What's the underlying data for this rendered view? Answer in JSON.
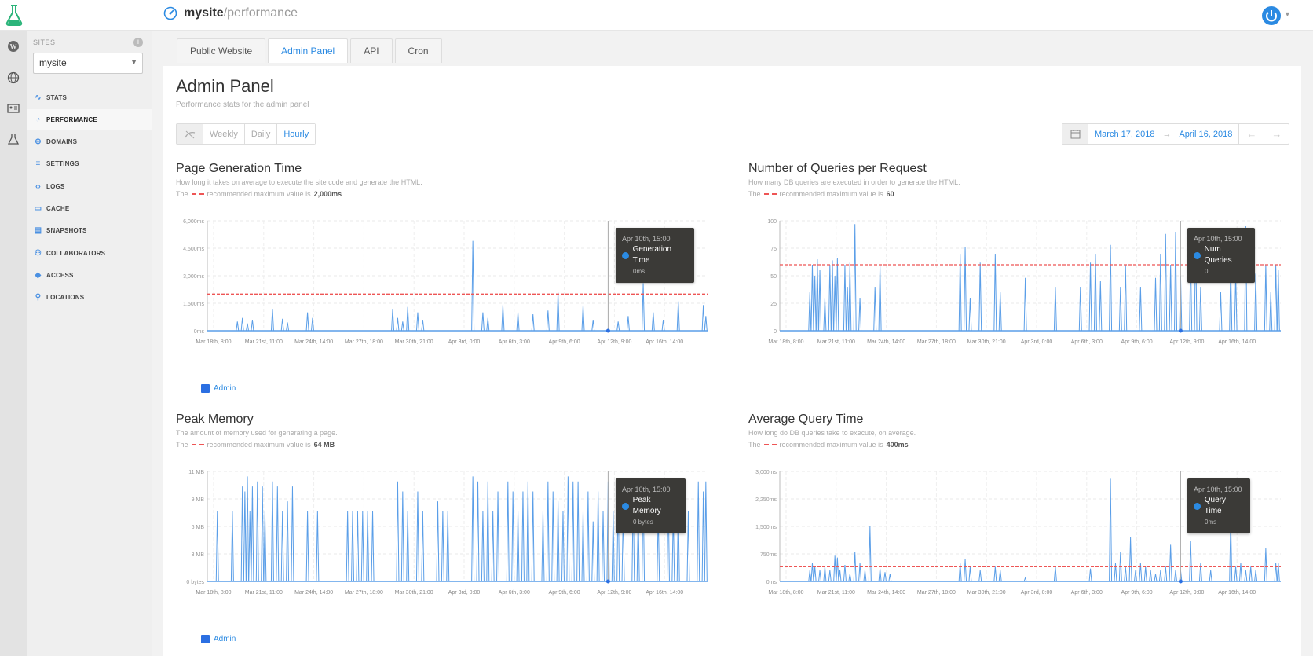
{
  "header": {
    "site_name": "mysite",
    "path": "/performance"
  },
  "sidebar": {
    "sites_label": "SITES",
    "selected_site": "mysite",
    "items": [
      {
        "label": "STATS",
        "icon": "stats-icon"
      },
      {
        "label": "PERFORMANCE",
        "icon": "gauge-icon"
      },
      {
        "label": "DOMAINS",
        "icon": "globe-icon"
      },
      {
        "label": "SETTINGS",
        "icon": "sliders-icon"
      },
      {
        "label": "LOGS",
        "icon": "code-icon"
      },
      {
        "label": "CACHE",
        "icon": "drive-icon"
      },
      {
        "label": "SNAPSHOTS",
        "icon": "snapshot-icon"
      },
      {
        "label": "COLLABORATORS",
        "icon": "users-icon"
      },
      {
        "label": "ACCESS",
        "icon": "diamond-icon"
      },
      {
        "label": "LOCATIONS",
        "icon": "pin-icon"
      }
    ]
  },
  "tabs": [
    "Public Website",
    "Admin Panel",
    "API",
    "Cron"
  ],
  "page": {
    "title": "Admin Panel",
    "subtitle": "Performance stats for the admin panel"
  },
  "range": {
    "weekly": "Weekly",
    "daily": "Daily",
    "hourly": "Hourly"
  },
  "dates": {
    "start": "March 17, 2018",
    "arrow": "→",
    "end": "April 16, 2018"
  },
  "x_ticks": [
    "Mar 18th, 8:00",
    "Mar 21st, 11:00",
    "Mar 24th, 14:00",
    "Mar 27th, 18:00",
    "Mar 30th, 21:00",
    "Apr 3rd, 0:00",
    "Apr 6th, 3:00",
    "Apr 9th, 6:00",
    "Apr 12th, 9:00",
    "Apr 16th, 14:00"
  ],
  "legend_label": "Admin",
  "charts": {
    "gen": {
      "title": "Page Generation Time",
      "desc": "How long it takes on average to execute the site code and generate the HTML.",
      "rec_prefix": "The",
      "rec_text": "recommended maximum value is",
      "rec_value": "2,000ms",
      "tooltip": {
        "date": "Apr 10th, 15:00",
        "series": "Generation Time",
        "value": "0ms"
      }
    },
    "queries": {
      "title": "Number of Queries per Request",
      "desc": "How many DB queries are executed in order to generate the HTML.",
      "rec_prefix": "The",
      "rec_text": "recommended maximum value is",
      "rec_value": "60",
      "tooltip": {
        "date": "Apr 10th, 15:00",
        "series": "Num Queries",
        "value": "0"
      }
    },
    "memory": {
      "title": "Peak Memory",
      "desc": "The amount of memory used for generating a page.",
      "rec_prefix": "The",
      "rec_text": "recommended maximum value is",
      "rec_value": "64 MB",
      "tooltip": {
        "date": "Apr 10th, 15:00",
        "series": "Peak Memory",
        "value": "0 bytes"
      }
    },
    "qtime": {
      "title": "Average Query Time",
      "desc": "How long do DB queries take to execute, on average.",
      "rec_prefix": "The",
      "rec_text": "recommended maximum value is",
      "rec_value": "400ms",
      "tooltip": {
        "date": "Apr 10th, 15:00",
        "series": "Query Time",
        "value": "0ms"
      }
    }
  },
  "chart_data": [
    {
      "type": "line",
      "title": "Page Generation Time",
      "y_ticks": [
        "6,000ms",
        "4,500ms",
        "3,000ms",
        "1,500ms",
        "0ms"
      ],
      "ylim": [
        0,
        6000
      ],
      "threshold": 2000,
      "color": "#5a9ee8",
      "spikes": [
        [
          0.06,
          500
        ],
        [
          0.07,
          700
        ],
        [
          0.08,
          400
        ],
        [
          0.09,
          600
        ],
        [
          0.13,
          1200
        ],
        [
          0.15,
          650
        ],
        [
          0.16,
          450
        ],
        [
          0.2,
          1000
        ],
        [
          0.21,
          700
        ],
        [
          0.37,
          1200
        ],
        [
          0.38,
          700
        ],
        [
          0.39,
          500
        ],
        [
          0.4,
          1300
        ],
        [
          0.42,
          1000
        ],
        [
          0.43,
          600
        ],
        [
          0.53,
          4900
        ],
        [
          0.55,
          1000
        ],
        [
          0.56,
          700
        ],
        [
          0.59,
          1400
        ],
        [
          0.62,
          1000
        ],
        [
          0.65,
          900
        ],
        [
          0.68,
          1100
        ],
        [
          0.7,
          2100
        ],
        [
          0.75,
          1400
        ],
        [
          0.77,
          600
        ],
        [
          0.82,
          500
        ],
        [
          0.84,
          800
        ],
        [
          0.87,
          2600
        ],
        [
          0.89,
          1000
        ],
        [
          0.91,
          600
        ],
        [
          0.94,
          1600
        ],
        [
          0.99,
          1400
        ],
        [
          0.995,
          800
        ]
      ]
    },
    {
      "type": "line",
      "title": "Number of Queries per Request",
      "y_ticks": [
        "100",
        "75",
        "50",
        "25",
        "0"
      ],
      "ylim": [
        0,
        100
      ],
      "threshold": 60,
      "color": "#5a9ee8",
      "spikes": [
        [
          0.06,
          35
        ],
        [
          0.065,
          60
        ],
        [
          0.07,
          50
        ],
        [
          0.075,
          65
        ],
        [
          0.08,
          55
        ],
        [
          0.09,
          30
        ],
        [
          0.1,
          60
        ],
        [
          0.105,
          64
        ],
        [
          0.11,
          50
        ],
        [
          0.115,
          66
        ],
        [
          0.13,
          60
        ],
        [
          0.135,
          40
        ],
        [
          0.14,
          62
        ],
        [
          0.15,
          97
        ],
        [
          0.16,
          30
        ],
        [
          0.19,
          40
        ],
        [
          0.2,
          60
        ],
        [
          0.36,
          70
        ],
        [
          0.37,
          76
        ],
        [
          0.38,
          30
        ],
        [
          0.4,
          62
        ],
        [
          0.43,
          70
        ],
        [
          0.44,
          35
        ],
        [
          0.49,
          48
        ],
        [
          0.55,
          40
        ],
        [
          0.6,
          40
        ],
        [
          0.62,
          62
        ],
        [
          0.63,
          70
        ],
        [
          0.64,
          45
        ],
        [
          0.66,
          78
        ],
        [
          0.68,
          40
        ],
        [
          0.69,
          60
        ],
        [
          0.72,
          40
        ],
        [
          0.75,
          48
        ],
        [
          0.76,
          70
        ],
        [
          0.77,
          88
        ],
        [
          0.78,
          60
        ],
        [
          0.79,
          90
        ],
        [
          0.8,
          50
        ],
        [
          0.82,
          70
        ],
        [
          0.83,
          88
        ],
        [
          0.84,
          40
        ],
        [
          0.88,
          35
        ],
        [
          0.9,
          60
        ],
        [
          0.91,
          52
        ],
        [
          0.93,
          95
        ],
        [
          0.95,
          52
        ],
        [
          0.97,
          60
        ],
        [
          0.98,
          35
        ],
        [
          0.99,
          60
        ],
        [
          0.995,
          55
        ]
      ]
    },
    {
      "type": "line",
      "title": "Peak Memory",
      "y_ticks": [
        "11 MB",
        "9 MB",
        "6 MB",
        "3 MB",
        "0 bytes"
      ],
      "ylim": [
        0,
        11
      ],
      "threshold": null,
      "color": "#5a9ee8",
      "spikes": [
        [
          0.02,
          7
        ],
        [
          0.05,
          7
        ],
        [
          0.07,
          9.5
        ],
        [
          0.075,
          9
        ],
        [
          0.08,
          10.5
        ],
        [
          0.085,
          7
        ],
        [
          0.09,
          9.5
        ],
        [
          0.1,
          10
        ],
        [
          0.11,
          9.5
        ],
        [
          0.115,
          7
        ],
        [
          0.13,
          10
        ],
        [
          0.14,
          9.5
        ],
        [
          0.15,
          7
        ],
        [
          0.16,
          8
        ],
        [
          0.17,
          9.5
        ],
        [
          0.2,
          7
        ],
        [
          0.22,
          7
        ],
        [
          0.28,
          7
        ],
        [
          0.29,
          7
        ],
        [
          0.3,
          7
        ],
        [
          0.31,
          7
        ],
        [
          0.32,
          7
        ],
        [
          0.33,
          7
        ],
        [
          0.38,
          10
        ],
        [
          0.39,
          9
        ],
        [
          0.4,
          7
        ],
        [
          0.42,
          9
        ],
        [
          0.43,
          7
        ],
        [
          0.46,
          8
        ],
        [
          0.47,
          7
        ],
        [
          0.48,
          7
        ],
        [
          0.53,
          10.5
        ],
        [
          0.54,
          10
        ],
        [
          0.55,
          7
        ],
        [
          0.56,
          10
        ],
        [
          0.57,
          7
        ],
        [
          0.58,
          9
        ],
        [
          0.6,
          10
        ],
        [
          0.61,
          9
        ],
        [
          0.62,
          7
        ],
        [
          0.63,
          9
        ],
        [
          0.64,
          10
        ],
        [
          0.65,
          9
        ],
        [
          0.67,
          7
        ],
        [
          0.68,
          10
        ],
        [
          0.69,
          9
        ],
        [
          0.7,
          8
        ],
        [
          0.71,
          7
        ],
        [
          0.72,
          10.5
        ],
        [
          0.73,
          10
        ],
        [
          0.74,
          10
        ],
        [
          0.75,
          7
        ],
        [
          0.76,
          9
        ],
        [
          0.77,
          6
        ],
        [
          0.78,
          9
        ],
        [
          0.79,
          7
        ],
        [
          0.8,
          10
        ],
        [
          0.81,
          7
        ],
        [
          0.82,
          9
        ],
        [
          0.83,
          7
        ],
        [
          0.85,
          9
        ],
        [
          0.86,
          7
        ],
        [
          0.87,
          9.5
        ],
        [
          0.9,
          7
        ],
        [
          0.92,
          9
        ],
        [
          0.93,
          7
        ],
        [
          0.94,
          8
        ],
        [
          0.96,
          7
        ],
        [
          0.98,
          10
        ],
        [
          0.99,
          9
        ],
        [
          0.995,
          10
        ]
      ]
    },
    {
      "type": "line",
      "title": "Average Query Time",
      "y_ticks": [
        "3,000ms",
        "2,250ms",
        "1,500ms",
        "750ms",
        "0ms"
      ],
      "ylim": [
        0,
        3000
      ],
      "threshold": 400,
      "color": "#5a9ee8",
      "spikes": [
        [
          0.06,
          300
        ],
        [
          0.065,
          500
        ],
        [
          0.07,
          400
        ],
        [
          0.08,
          300
        ],
        [
          0.09,
          400
        ],
        [
          0.1,
          300
        ],
        [
          0.11,
          700
        ],
        [
          0.115,
          650
        ],
        [
          0.12,
          300
        ],
        [
          0.13,
          450
        ],
        [
          0.14,
          200
        ],
        [
          0.15,
          800
        ],
        [
          0.16,
          500
        ],
        [
          0.17,
          300
        ],
        [
          0.18,
          1500
        ],
        [
          0.2,
          350
        ],
        [
          0.21,
          250
        ],
        [
          0.22,
          200
        ],
        [
          0.36,
          500
        ],
        [
          0.37,
          600
        ],
        [
          0.38,
          400
        ],
        [
          0.4,
          300
        ],
        [
          0.43,
          400
        ],
        [
          0.44,
          300
        ],
        [
          0.49,
          100
        ],
        [
          0.55,
          400
        ],
        [
          0.62,
          350
        ],
        [
          0.66,
          2800
        ],
        [
          0.67,
          500
        ],
        [
          0.68,
          800
        ],
        [
          0.69,
          400
        ],
        [
          0.7,
          1200
        ],
        [
          0.71,
          300
        ],
        [
          0.72,
          500
        ],
        [
          0.73,
          400
        ],
        [
          0.74,
          300
        ],
        [
          0.75,
          200
        ],
        [
          0.76,
          300
        ],
        [
          0.77,
          400
        ],
        [
          0.78,
          1000
        ],
        [
          0.79,
          300
        ],
        [
          0.8,
          300
        ],
        [
          0.82,
          1100
        ],
        [
          0.84,
          500
        ],
        [
          0.86,
          300
        ],
        [
          0.9,
          1700
        ],
        [
          0.91,
          400
        ],
        [
          0.92,
          500
        ],
        [
          0.93,
          300
        ],
        [
          0.94,
          400
        ],
        [
          0.95,
          300
        ],
        [
          0.97,
          900
        ],
        [
          0.99,
          500
        ],
        [
          0.995,
          500
        ]
      ]
    }
  ]
}
